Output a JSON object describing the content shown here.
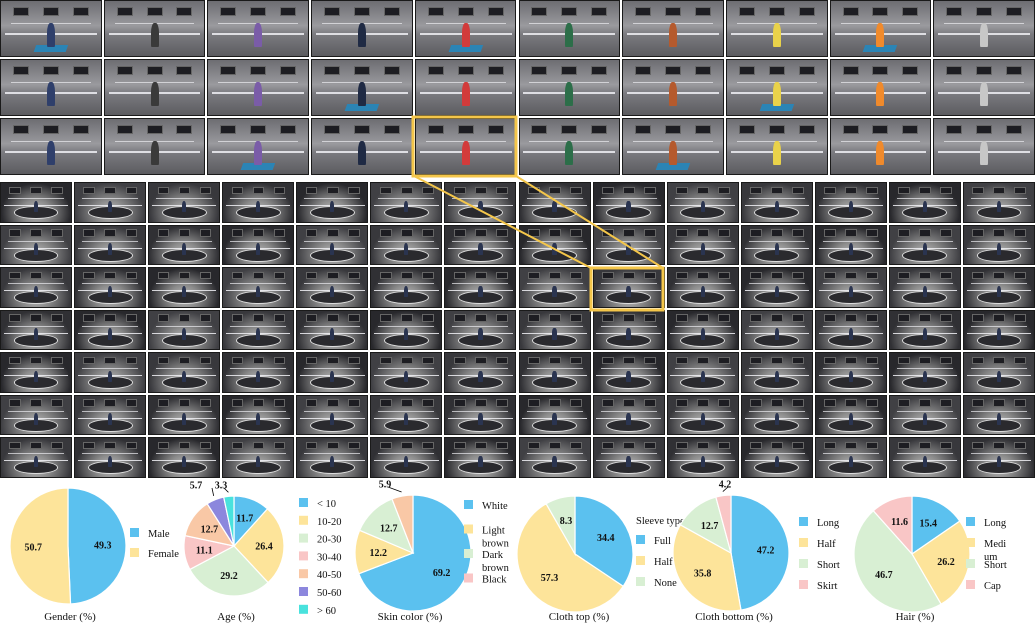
{
  "colors": {
    "blue": "#5bc1ef",
    "yellow": "#fde49a",
    "green": "#d8efd3",
    "pink": "#f9c6c6",
    "purple": "#8c87dd",
    "cyan": "#49e2dd",
    "salmon": "#f9c8a6",
    "highlight": "#f4c64a"
  },
  "chart_data": [
    {
      "type": "pie",
      "title": "Gender (%)",
      "slices": [
        {
          "label": "Male",
          "value": 49.3,
          "color": "#5bc1ef"
        },
        {
          "label": "Female",
          "value": 50.7,
          "color": "#fde49a"
        }
      ],
      "legend_title": "",
      "legend_placement": "right"
    },
    {
      "type": "pie",
      "title": "Age (%)",
      "slices": [
        {
          "label": "< 10",
          "value": 11.7,
          "color": "#5bc1ef"
        },
        {
          "label": "10-20",
          "value": 26.4,
          "color": "#fde49a"
        },
        {
          "label": "20-30",
          "value": 29.2,
          "color": "#d8efd3"
        },
        {
          "label": "30-40",
          "value": 11.1,
          "color": "#f9c6c6"
        },
        {
          "label": "40-50",
          "value": 12.7,
          "color": "#f9c8a6"
        },
        {
          "label": "50-60",
          "value": 5.7,
          "color": "#8c87dd"
        },
        {
          "label": "> 60",
          "value": 3.3,
          "color": "#49e2dd"
        }
      ],
      "legend_title": "",
      "legend_placement": "right"
    },
    {
      "type": "pie",
      "title": "Skin color (%)",
      "slices": [
        {
          "label": "White",
          "value": 69.2,
          "color": "#5bc1ef"
        },
        {
          "label": "Light brown",
          "value": 12.2,
          "color": "#fde49a"
        },
        {
          "label": "Dark brown",
          "value": 12.7,
          "color": "#d8efd3"
        },
        {
          "label": "",
          "value": 5.9,
          "color": "#f9c8a6"
        }
      ],
      "legend_items": [
        "White",
        "Light brown",
        "Dark brown",
        "Black"
      ],
      "legend_title": "",
      "legend_placement": "right"
    },
    {
      "type": "pie",
      "title": "Cloth top (%)",
      "slices": [
        {
          "label": "Full",
          "value": 34.4,
          "color": "#5bc1ef"
        },
        {
          "label": "Half",
          "value": 57.3,
          "color": "#fde49a"
        },
        {
          "label": "None",
          "value": 8.3,
          "color": "#d8efd3"
        }
      ],
      "legend_title": "Sleeve type",
      "legend_placement": "right"
    },
    {
      "type": "pie",
      "title": "Cloth bottom (%)",
      "slices": [
        {
          "label": "Long",
          "value": 47.2,
          "color": "#5bc1ef"
        },
        {
          "label": "Half",
          "value": 35.8,
          "color": "#fde49a"
        },
        {
          "label": "Short",
          "value": 12.7,
          "color": "#d8efd3"
        },
        {
          "label": "Skirt",
          "value": 4.2,
          "color": "#f9c6c6"
        }
      ],
      "legend_title": "",
      "legend_placement": "right"
    },
    {
      "type": "pie",
      "title": "Hair (%)",
      "slices": [
        {
          "label": "Long",
          "value": 15.4,
          "color": "#5bc1ef"
        },
        {
          "label": "Medium",
          "value": 26.2,
          "color": "#fde49a"
        },
        {
          "label": "Short",
          "value": 46.7,
          "color": "#d8efd3"
        },
        {
          "label": "Cap",
          "value": 11.6,
          "color": "#f9c6c6"
        }
      ],
      "legend_items": [
        "Long",
        "Medi\num",
        "Short",
        "Cap"
      ],
      "legend_title": "",
      "legend_placement": "right"
    }
  ]
}
